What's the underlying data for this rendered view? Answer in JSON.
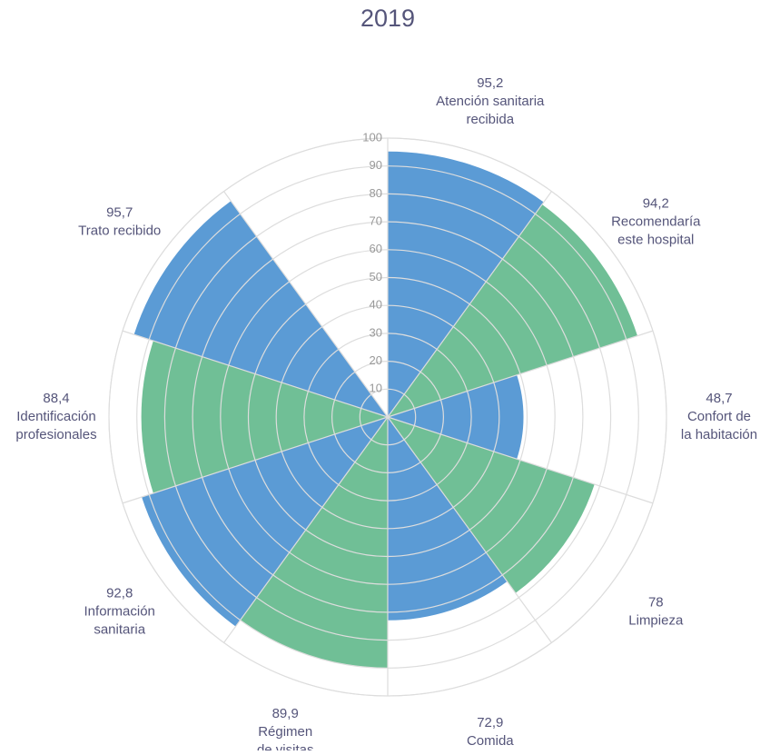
{
  "chart_data": {
    "type": "polar-area",
    "title": "2019",
    "categories": [
      [
        "Atención sanitaria",
        "recibida"
      ],
      [
        "Recomendaría",
        "este hospital"
      ],
      [
        "Confort de",
        "la habitación"
      ],
      [
        "Limpieza"
      ],
      [
        "Comida"
      ],
      [
        "Régimen",
        "de visitas"
      ],
      [
        "Información",
        "sanitaria"
      ],
      [
        "Identificación",
        "profesionales"
      ],
      [
        "Trato recibido"
      ],
      null
    ],
    "values": [
      95.2,
      94.2,
      48.7,
      78,
      72.9,
      89.9,
      92.8,
      88.4,
      95.7,
      null
    ],
    "value_labels": [
      "95,2",
      "94,2",
      "48,7",
      "78",
      "72,9",
      "89,9",
      "92,8",
      "88,4",
      "95,7",
      null
    ],
    "colors": [
      "#5b9bd5",
      "#70bf96",
      "#5b9bd5",
      "#70bf96",
      "#5b9bd5",
      "#70bf96",
      "#5b9bd5",
      "#70bf96",
      "#5b9bd5",
      "#70bf96"
    ],
    "rlim": [
      0,
      100
    ],
    "rticks": [
      10,
      20,
      30,
      40,
      50,
      60,
      70,
      80,
      90,
      100
    ],
    "grid": true
  }
}
